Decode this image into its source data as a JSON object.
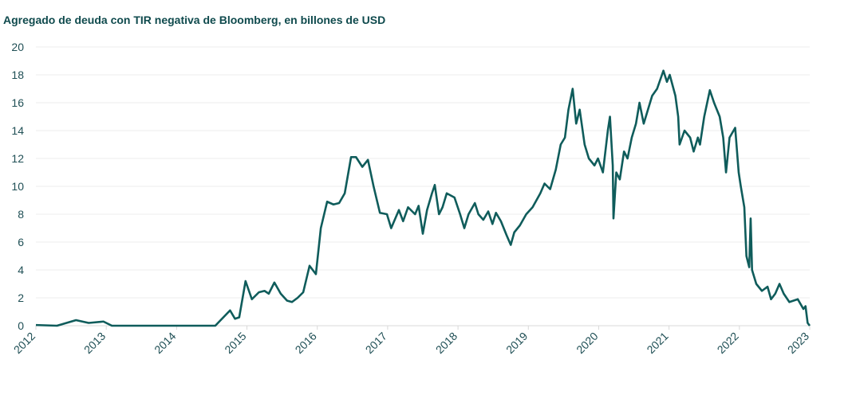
{
  "chart_data": {
    "type": "line",
    "title": "Agregado de deuda con TIR negativa de Bloomberg, en billones de USD",
    "x": [
      2012.0,
      2012.3,
      2012.57,
      2012.75,
      2012.96,
      2013.08,
      2014.55,
      2014.76,
      2014.83,
      2014.89,
      2014.98,
      2015.07,
      2015.17,
      2015.25,
      2015.31,
      2015.39,
      2015.48,
      2015.57,
      2015.64,
      2015.72,
      2015.8,
      2015.89,
      2015.98,
      2016.05,
      2016.14,
      2016.23,
      2016.31,
      2016.39,
      2016.48,
      2016.55,
      2016.64,
      2016.72,
      2016.8,
      2016.89,
      2016.99,
      2017.05,
      2017.16,
      2017.22,
      2017.29,
      2017.39,
      2017.44,
      2017.5,
      2017.56,
      2017.63,
      2017.67,
      2017.73,
      2017.78,
      2017.84,
      2017.95,
      2018.03,
      2018.09,
      2018.15,
      2018.24,
      2018.29,
      2018.36,
      2018.43,
      2018.49,
      2018.54,
      2018.61,
      2018.69,
      2018.75,
      2018.8,
      2018.88,
      2018.97,
      2019.06,
      2019.17,
      2019.23,
      2019.31,
      2019.39,
      2019.46,
      2019.52,
      2019.57,
      2019.63,
      2019.68,
      2019.73,
      2019.8,
      2019.86,
      2019.94,
      2019.99,
      2020.06,
      2020.13,
      2020.16,
      2020.2,
      2020.21,
      2020.25,
      2020.3,
      2020.36,
      2020.41,
      2020.47,
      2020.53,
      2020.58,
      2020.64,
      2020.7,
      2020.76,
      2020.83,
      2020.92,
      2020.97,
      2021.01,
      2021.09,
      2021.13,
      2021.15,
      2021.22,
      2021.3,
      2021.35,
      2021.41,
      2021.44,
      2021.5,
      2021.58,
      2021.64,
      2021.72,
      2021.77,
      2021.81,
      2021.86,
      2021.94,
      2021.99,
      2022.02,
      2022.07,
      2022.1,
      2022.14,
      2022.16,
      2022.18,
      2022.24,
      2022.32,
      2022.4,
      2022.45,
      2022.51,
      2022.57,
      2022.63,
      2022.71,
      2022.83,
      2022.91,
      2022.94,
      2022.97,
      2023.0
    ],
    "series": [
      {
        "name": "Agregado de deuda con TIR negativa",
        "color": "#0f5c5b",
        "values": [
          0.05,
          0.0,
          0.4,
          0.2,
          0.3,
          0.0,
          0.0,
          1.1,
          0.5,
          0.6,
          3.2,
          1.9,
          2.4,
          2.5,
          2.3,
          3.1,
          2.3,
          1.8,
          1.7,
          2.0,
          2.4,
          4.3,
          3.7,
          7.0,
          8.9,
          8.7,
          8.8,
          9.5,
          12.1,
          12.1,
          11.4,
          11.9,
          10.0,
          8.1,
          8.0,
          7.0,
          8.3,
          7.5,
          8.5,
          8.0,
          8.6,
          6.6,
          8.3,
          9.5,
          10.1,
          8.0,
          8.5,
          9.5,
          9.2,
          8.0,
          7.0,
          8.0,
          8.8,
          8.0,
          7.6,
          8.2,
          7.3,
          8.1,
          7.5,
          6.5,
          5.8,
          6.7,
          7.2,
          8.0,
          8.5,
          9.5,
          10.2,
          9.8,
          11.2,
          13.0,
          13.5,
          15.5,
          17.0,
          14.5,
          15.5,
          13.0,
          12.0,
          11.5,
          12.0,
          11.0,
          14.0,
          15.0,
          11.5,
          7.7,
          11.0,
          10.5,
          12.5,
          12.0,
          13.5,
          14.5,
          16.0,
          14.5,
          15.5,
          16.5,
          17.0,
          18.3,
          17.5,
          18.0,
          16.5,
          15.0,
          13.0,
          14.0,
          13.5,
          12.5,
          13.5,
          13.0,
          15.0,
          16.9,
          16.0,
          15.0,
          13.5,
          11.0,
          13.5,
          14.2,
          11.0,
          10.0,
          8.5,
          5.0,
          4.2,
          7.7,
          4.0,
          3.0,
          2.5,
          2.8,
          1.9,
          2.3,
          3.0,
          2.3,
          1.7,
          1.9,
          1.2,
          1.4,
          0.2,
          0.0
        ]
      }
    ],
    "xlim": [
      2012,
      2023
    ],
    "xticks": [
      2012,
      2013,
      2014,
      2015,
      2016,
      2017,
      2018,
      2019,
      2020,
      2021,
      2022,
      2023
    ],
    "ylim": [
      0,
      20
    ],
    "yticks": [
      0,
      2,
      4,
      6,
      8,
      10,
      12,
      14,
      16,
      18,
      20
    ],
    "grid": true
  }
}
